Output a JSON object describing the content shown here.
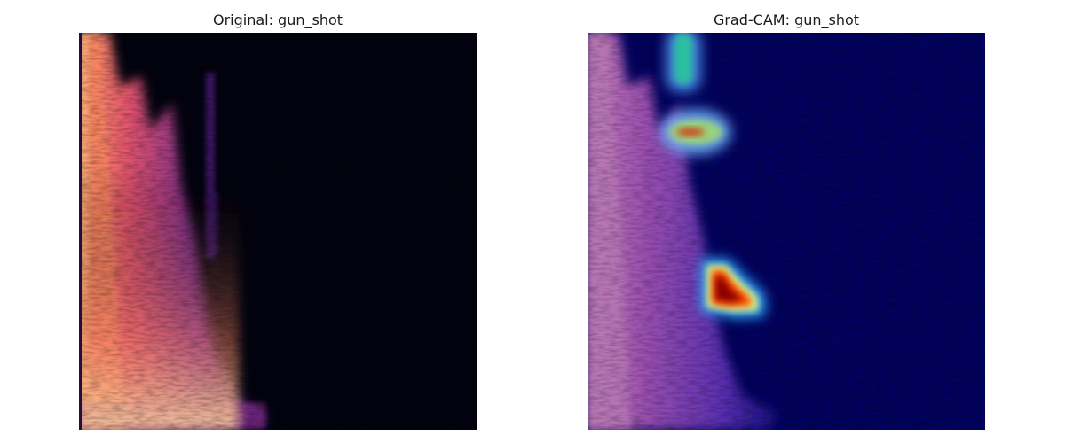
{
  "figure": {
    "panels": [
      {
        "title": "Original: gun_shot",
        "image": "mel-spectrogram",
        "colormap": "magma"
      },
      {
        "title": "Grad-CAM: gun_shot",
        "image": "gradcam-heatmap-overlay",
        "colormap": "jet"
      }
    ],
    "colors": {
      "spectrogram_background": "#02030f",
      "heatmap_background": "#02025e",
      "heatmap_hot": "#8b0000"
    }
  }
}
